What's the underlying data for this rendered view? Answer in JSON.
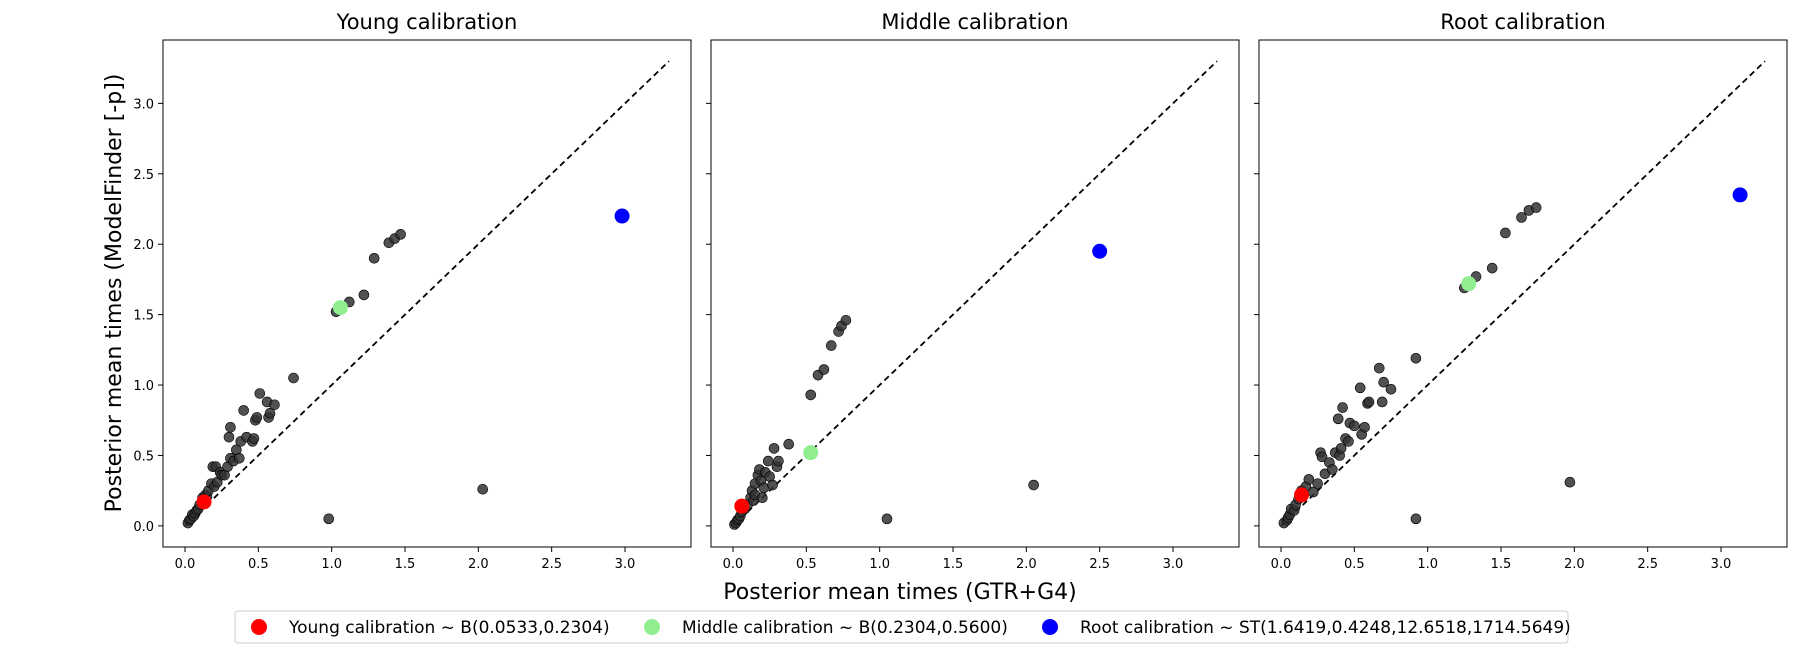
{
  "figure": {
    "xlabel": "Posterior mean times (GTR+G4)",
    "ylabel": "Posterior mean times (ModelFinder [-p])",
    "legend": {
      "placement": "bottom-center",
      "entries": [
        {
          "label": "Young calibration ~ B(0.0533,0.2304)",
          "color": "#ff0000"
        },
        {
          "label": "Middle calibration ~ B(0.2304,0.5600)",
          "color": "#90ee90"
        },
        {
          "label": "Root calibration ~ ST(1.6419,0.4248,12.6518,1714.5649)",
          "color": "#0000ff"
        }
      ]
    }
  },
  "chart_data": [
    {
      "type": "scatter",
      "title": "Young calibration",
      "xlim": [
        -0.15,
        3.45
      ],
      "ylim": [
        -0.15,
        3.45
      ],
      "xticks": [
        "0.0",
        "0.5",
        "1.0",
        "1.5",
        "2.0",
        "2.5",
        "3.0"
      ],
      "yticks": [
        "0.0",
        "0.5",
        "1.0",
        "1.5",
        "2.0",
        "2.5",
        "3.0"
      ],
      "reference_line": {
        "from": [
          0,
          0
        ],
        "to": [
          3.3,
          3.3
        ],
        "style": "dashed"
      },
      "series": [
        {
          "color": "#333333",
          "points": [
            [
              0.02,
              0.02
            ],
            [
              0.03,
              0.04
            ],
            [
              0.04,
              0.05
            ],
            [
              0.05,
              0.08
            ],
            [
              0.06,
              0.07
            ],
            [
              0.07,
              0.09
            ],
            [
              0.08,
              0.11
            ],
            [
              0.09,
              0.12
            ],
            [
              0.1,
              0.15
            ],
            [
              0.12,
              0.2
            ],
            [
              0.14,
              0.22
            ],
            [
              0.15,
              0.21
            ],
            [
              0.16,
              0.25
            ],
            [
              0.18,
              0.3
            ],
            [
              0.19,
              0.42
            ],
            [
              0.2,
              0.28
            ],
            [
              0.21,
              0.42
            ],
            [
              0.22,
              0.31
            ],
            [
              0.24,
              0.38
            ],
            [
              0.25,
              0.36
            ],
            [
              0.27,
              0.36
            ],
            [
              0.29,
              0.42
            ],
            [
              0.3,
              0.63
            ],
            [
              0.31,
              0.7
            ],
            [
              0.31,
              0.48
            ],
            [
              0.33,
              0.46
            ],
            [
              0.35,
              0.54
            ],
            [
              0.37,
              0.48
            ],
            [
              0.38,
              0.6
            ],
            [
              0.4,
              0.82
            ],
            [
              0.42,
              0.63
            ],
            [
              0.46,
              0.6
            ],
            [
              0.47,
              0.62
            ],
            [
              0.48,
              0.75
            ],
            [
              0.49,
              0.77
            ],
            [
              0.51,
              0.94
            ],
            [
              0.56,
              0.88
            ],
            [
              0.57,
              0.77
            ],
            [
              0.58,
              0.8
            ],
            [
              0.61,
              0.86
            ],
            [
              0.74,
              1.05
            ],
            [
              1.03,
              1.52
            ],
            [
              1.12,
              1.59
            ],
            [
              1.22,
              1.64
            ],
            [
              1.29,
              1.9
            ],
            [
              1.39,
              2.01
            ],
            [
              1.43,
              2.04
            ],
            [
              1.47,
              2.07
            ],
            [
              0.98,
              0.05
            ],
            [
              2.03,
              0.26
            ]
          ]
        },
        {
          "color": "#ff0000",
          "points": [
            [
              0.13,
              0.17
            ]
          ]
        },
        {
          "color": "#90ee90",
          "points": [
            [
              1.06,
              1.55
            ]
          ]
        },
        {
          "color": "#0000ff",
          "points": [
            [
              2.98,
              2.2
            ]
          ]
        }
      ]
    },
    {
      "type": "scatter",
      "title": "Middle calibration",
      "xlim": [
        -0.15,
        3.45
      ],
      "ylim": [
        -0.15,
        3.45
      ],
      "xticks": [
        "0.0",
        "0.5",
        "1.0",
        "1.5",
        "2.0",
        "2.5",
        "3.0"
      ],
      "yticks": [],
      "reference_line": {
        "from": [
          0,
          0
        ],
        "to": [
          3.3,
          3.3
        ],
        "style": "dashed"
      },
      "series": [
        {
          "color": "#333333",
          "points": [
            [
              0.01,
              0.01
            ],
            [
              0.02,
              0.02
            ],
            [
              0.03,
              0.04
            ],
            [
              0.04,
              0.05
            ],
            [
              0.05,
              0.07
            ],
            [
              0.06,
              0.1
            ],
            [
              0.08,
              0.12
            ],
            [
              0.1,
              0.15
            ],
            [
              0.12,
              0.2
            ],
            [
              0.13,
              0.25
            ],
            [
              0.14,
              0.18
            ],
            [
              0.15,
              0.22
            ],
            [
              0.15,
              0.3
            ],
            [
              0.17,
              0.36
            ],
            [
              0.18,
              0.4
            ],
            [
              0.19,
              0.32
            ],
            [
              0.2,
              0.2
            ],
            [
              0.21,
              0.27
            ],
            [
              0.22,
              0.38
            ],
            [
              0.24,
              0.46
            ],
            [
              0.25,
              0.35
            ],
            [
              0.27,
              0.29
            ],
            [
              0.28,
              0.55
            ],
            [
              0.3,
              0.42
            ],
            [
              0.31,
              0.46
            ],
            [
              0.38,
              0.58
            ],
            [
              0.53,
              0.93
            ],
            [
              0.58,
              1.07
            ],
            [
              0.62,
              1.11
            ],
            [
              0.67,
              1.28
            ],
            [
              0.72,
              1.38
            ],
            [
              0.74,
              1.42
            ],
            [
              0.77,
              1.46
            ],
            [
              1.05,
              0.05
            ],
            [
              2.05,
              0.29
            ]
          ]
        },
        {
          "color": "#ff0000",
          "points": [
            [
              0.06,
              0.14
            ]
          ]
        },
        {
          "color": "#90ee90",
          "points": [
            [
              0.53,
              0.52
            ]
          ]
        },
        {
          "color": "#0000ff",
          "points": [
            [
              2.5,
              1.95
            ]
          ]
        }
      ]
    },
    {
      "type": "scatter",
      "title": "Root calibration",
      "xlim": [
        -0.15,
        3.45
      ],
      "ylim": [
        -0.15,
        3.45
      ],
      "xticks": [
        "0.0",
        "0.5",
        "1.0",
        "1.5",
        "2.0",
        "2.5",
        "3.0"
      ],
      "yticks": [],
      "reference_line": {
        "from": [
          0,
          0
        ],
        "to": [
          3.3,
          3.3
        ],
        "style": "dashed"
      },
      "series": [
        {
          "color": "#333333",
          "points": [
            [
              0.02,
              0.02
            ],
            [
              0.04,
              0.04
            ],
            [
              0.05,
              0.06
            ],
            [
              0.06,
              0.08
            ],
            [
              0.07,
              0.12
            ],
            [
              0.09,
              0.11
            ],
            [
              0.1,
              0.15
            ],
            [
              0.12,
              0.19
            ],
            [
              0.14,
              0.25
            ],
            [
              0.17,
              0.28
            ],
            [
              0.19,
              0.33
            ],
            [
              0.22,
              0.24
            ],
            [
              0.25,
              0.3
            ],
            [
              0.27,
              0.52
            ],
            [
              0.28,
              0.49
            ],
            [
              0.3,
              0.37
            ],
            [
              0.33,
              0.45
            ],
            [
              0.35,
              0.4
            ],
            [
              0.37,
              0.52
            ],
            [
              0.39,
              0.76
            ],
            [
              0.4,
              0.5
            ],
            [
              0.41,
              0.55
            ],
            [
              0.42,
              0.84
            ],
            [
              0.44,
              0.62
            ],
            [
              0.46,
              0.6
            ],
            [
              0.47,
              0.73
            ],
            [
              0.5,
              0.71
            ],
            [
              0.54,
              0.98
            ],
            [
              0.55,
              0.65
            ],
            [
              0.57,
              0.7
            ],
            [
              0.59,
              0.87
            ],
            [
              0.6,
              0.88
            ],
            [
              0.67,
              1.12
            ],
            [
              0.69,
              0.88
            ],
            [
              0.7,
              1.02
            ],
            [
              0.75,
              0.97
            ],
            [
              0.92,
              1.19
            ],
            [
              1.25,
              1.69
            ],
            [
              1.33,
              1.77
            ],
            [
              1.44,
              1.83
            ],
            [
              1.53,
              2.08
            ],
            [
              1.64,
              2.19
            ],
            [
              1.69,
              2.24
            ],
            [
              1.74,
              2.26
            ],
            [
              0.92,
              0.05
            ],
            [
              1.97,
              0.31
            ]
          ]
        },
        {
          "color": "#ff0000",
          "points": [
            [
              0.14,
              0.22
            ]
          ]
        },
        {
          "color": "#90ee90",
          "points": [
            [
              1.28,
              1.72
            ]
          ]
        },
        {
          "color": "#0000ff",
          "points": [
            [
              3.13,
              2.35
            ]
          ]
        }
      ]
    }
  ]
}
